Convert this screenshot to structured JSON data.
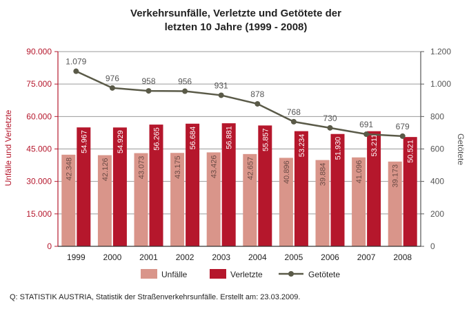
{
  "chart_data": {
    "type": "bar",
    "title_lines": [
      "Verkehrsunfälle, Verletzte und Getötete der",
      "letzten 10 Jahre (1999 - 2008)"
    ],
    "categories": [
      "1999",
      "2000",
      "2001",
      "2002",
      "2003",
      "2004",
      "2005",
      "2006",
      "2007",
      "2008"
    ],
    "series": [
      {
        "name": "Unfälle",
        "axis": "left",
        "kind": "bar",
        "color": "#d9958a",
        "values": [
          42348,
          42126,
          43073,
          43175,
          43426,
          42657,
          40896,
          39884,
          41096,
          39173
        ],
        "labels": [
          "42.348",
          "42.126",
          "43.073",
          "43.175",
          "43.426",
          "42.657",
          "40.896",
          "39.884",
          "41.096",
          "39.173"
        ]
      },
      {
        "name": "Verletzte",
        "axis": "left",
        "kind": "bar",
        "color": "#b5172c",
        "values": [
          54967,
          54929,
          56265,
          56684,
          56881,
          55857,
          53234,
          51930,
          53211,
          50521
        ],
        "labels": [
          "54.967",
          "54.929",
          "56.265",
          "56.684",
          "56.881",
          "55.857",
          "53.234",
          "51.930",
          "53.211",
          "50.521"
        ]
      },
      {
        "name": "Getötete",
        "axis": "right",
        "kind": "line",
        "color": "#5a5a48",
        "values": [
          1079,
          976,
          958,
          956,
          931,
          878,
          768,
          730,
          691,
          679
        ],
        "labels": [
          "1.079",
          "976",
          "958",
          "956",
          "931",
          "878",
          "768",
          "730",
          "691",
          "679"
        ]
      }
    ],
    "ylabel_left": "Unfälle und Verletzte",
    "ylabel_right": "Getötete",
    "ylim_left": [
      0,
      90000
    ],
    "yticks_left": [
      0,
      15000,
      30000,
      45000,
      60000,
      75000,
      90000
    ],
    "ytick_labels_left": [
      "0",
      "15.000",
      "30.000",
      "45.000",
      "60.000",
      "75.000",
      "90.000"
    ],
    "ylim_right": [
      0,
      1200
    ],
    "yticks_right": [
      0,
      200,
      400,
      600,
      800,
      1000,
      1200
    ],
    "ytick_labels_right": [
      "0",
      "200",
      "400",
      "600",
      "800",
      "1.000",
      "1.200"
    ],
    "grid": true,
    "legend": "bottom",
    "source_note": "Q: STATISTIK AUSTRIA, Statistik der Straßenverkehrsunfälle. Erstellt am: 23.03.2009."
  }
}
